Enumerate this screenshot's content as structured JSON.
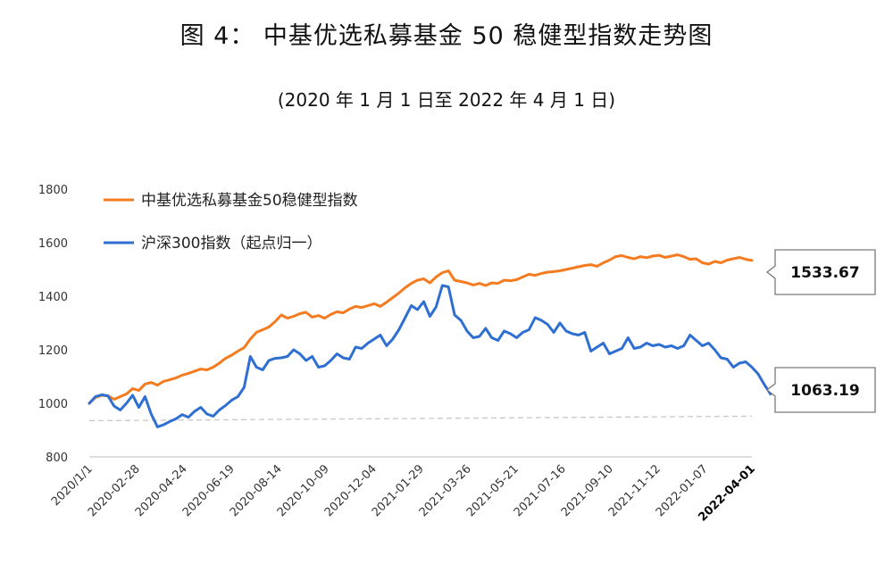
{
  "header": {
    "title": "图 4： 中基优选私募基金 50 稳健型指数走势图",
    "subtitle": "(2020 年 1 月 1 日至 2022 年 4 月 1 日)"
  },
  "chart_data": {
    "type": "line",
    "title": "图 4： 中基优选私募基金 50 稳健型指数走势图",
    "subtitle": "(2020 年 1 月 1 日至 2022 年 4 月 1 日)",
    "xlabel": "",
    "ylabel": "",
    "ylim": [
      800,
      1800
    ],
    "yticks": [
      800,
      1000,
      1200,
      1400,
      1600,
      1800
    ],
    "xticks": [
      "2020/1/1",
      "2020-02-28",
      "2020-04-24",
      "2020-06-19",
      "2020-08-14",
      "2020-10-09",
      "2020-12-04",
      "2021-01-29",
      "2021-03-26",
      "2021-05-21",
      "2021-07-16",
      "2021-09-10",
      "2021-11-12",
      "2022-01-07",
      "2022-04-01"
    ],
    "legend_position": "top-left",
    "grid": false,
    "series": [
      {
        "name": "中基优选私募基金50稳健型指数",
        "color": "#F47B20",
        "end_label": "1533.67",
        "values": [
          1000,
          1022,
          1030,
          1028,
          1015,
          1025,
          1035,
          1055,
          1048,
          1072,
          1078,
          1068,
          1082,
          1088,
          1095,
          1105,
          1112,
          1120,
          1128,
          1125,
          1135,
          1150,
          1168,
          1180,
          1195,
          1208,
          1240,
          1265,
          1275,
          1285,
          1305,
          1330,
          1318,
          1325,
          1335,
          1340,
          1322,
          1328,
          1318,
          1332,
          1342,
          1338,
          1352,
          1362,
          1358,
          1365,
          1372,
          1362,
          1378,
          1395,
          1412,
          1432,
          1448,
          1460,
          1465,
          1450,
          1472,
          1488,
          1495,
          1460,
          1455,
          1450,
          1442,
          1448,
          1440,
          1450,
          1448,
          1460,
          1458,
          1462,
          1472,
          1482,
          1478,
          1485,
          1490,
          1492,
          1495,
          1500,
          1505,
          1510,
          1515,
          1518,
          1512,
          1525,
          1535,
          1548,
          1552,
          1545,
          1540,
          1548,
          1544,
          1550,
          1553,
          1545,
          1550,
          1555,
          1548,
          1538,
          1540,
          1525,
          1520,
          1530,
          1525,
          1535,
          1540,
          1545,
          1538,
          1533.67
        ]
      },
      {
        "name": "沪深300指数（起点归一）",
        "color": "#2F6FD1",
        "end_label": "1063.19",
        "values": [
          1000,
          1025,
          1032,
          1028,
          990,
          975,
          1000,
          1030,
          985,
          1025,
          960,
          912,
          920,
          932,
          942,
          958,
          948,
          970,
          985,
          960,
          952,
          975,
          992,
          1012,
          1025,
          1060,
          1175,
          1135,
          1125,
          1160,
          1168,
          1170,
          1175,
          1200,
          1185,
          1160,
          1175,
          1135,
          1140,
          1160,
          1185,
          1170,
          1165,
          1210,
          1205,
          1225,
          1240,
          1255,
          1215,
          1240,
          1275,
          1320,
          1365,
          1350,
          1380,
          1325,
          1360,
          1440,
          1435,
          1330,
          1310,
          1270,
          1245,
          1250,
          1280,
          1245,
          1235,
          1270,
          1260,
          1245,
          1265,
          1275,
          1320,
          1310,
          1295,
          1265,
          1300,
          1270,
          1260,
          1255,
          1265,
          1195,
          1210,
          1225,
          1185,
          1195,
          1205,
          1245,
          1205,
          1210,
          1225,
          1215,
          1220,
          1210,
          1215,
          1205,
          1215,
          1255,
          1235,
          1215,
          1225,
          1200,
          1170,
          1165,
          1135,
          1150,
          1155,
          1135,
          1110,
          1070,
          1035,
          1063.19
        ]
      }
    ],
    "reference_line": {
      "style": "dashed",
      "color": "#C8C8C8",
      "start": 935,
      "end": 952
    }
  }
}
